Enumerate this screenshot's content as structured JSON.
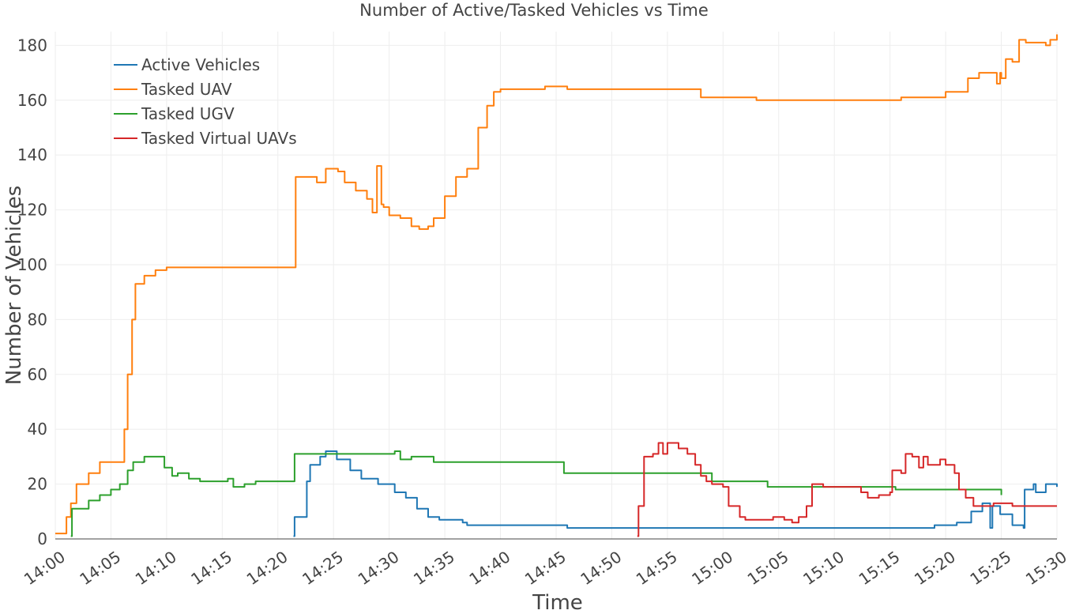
{
  "chart_data": {
    "type": "line",
    "title": "Number of Active/Tasked Vehicles vs Time",
    "xlabel": "Time",
    "ylabel": "Number of Vehicles",
    "xlim_minutes": [
      0,
      90
    ],
    "ylim": [
      0,
      185
    ],
    "grid": true,
    "legend_position": "top-left",
    "x_tick_values": [
      0,
      5,
      10,
      15,
      20,
      25,
      30,
      35,
      40,
      45,
      50,
      55,
      60,
      65,
      70,
      75,
      80,
      85,
      90
    ],
    "x_ticks": [
      "14:00",
      "14:05",
      "14:10",
      "14:15",
      "14:20",
      "14:25",
      "14:30",
      "14:35",
      "14:40",
      "14:45",
      "14:50",
      "14:55",
      "15:00",
      "15:05",
      "15:10",
      "15:15",
      "15:20",
      "15:25",
      "15:30"
    ],
    "y_ticks": [
      0,
      20,
      40,
      60,
      80,
      100,
      120,
      140,
      160,
      180
    ],
    "series": [
      {
        "name": "Active Vehicles",
        "color": "#1f77b4",
        "points": [
          [
            21.4,
            1
          ],
          [
            21.5,
            8
          ],
          [
            22.3,
            8
          ],
          [
            22.6,
            21
          ],
          [
            22.9,
            27
          ],
          [
            23.8,
            30
          ],
          [
            24.3,
            32
          ],
          [
            25,
            32
          ],
          [
            25.3,
            29
          ],
          [
            26.5,
            25
          ],
          [
            27.5,
            22
          ],
          [
            29,
            20
          ],
          [
            30.5,
            17
          ],
          [
            31.5,
            15
          ],
          [
            32.5,
            11
          ],
          [
            33.5,
            8
          ],
          [
            34.5,
            7
          ],
          [
            36.6,
            6
          ],
          [
            37,
            5
          ],
          [
            45,
            5
          ],
          [
            46,
            4
          ],
          [
            84,
            4
          ],
          [
            86,
            5
          ],
          [
            87,
            4
          ],
          [
            87.1,
            18
          ],
          [
            87.9,
            20
          ],
          [
            88.1,
            17
          ],
          [
            89,
            20
          ],
          [
            90,
            19
          ]
        ],
        "extra_points": [
          [
            75,
            4
          ],
          [
            79,
            5
          ],
          [
            81,
            6
          ],
          [
            82.3,
            10
          ],
          [
            83.3,
            13
          ],
          [
            84.2,
            12
          ],
          [
            84.9,
            9
          ]
        ]
      },
      {
        "name": "Tasked UAV",
        "color": "#ff7f0e",
        "points": [
          [
            0,
            2
          ],
          [
            0.7,
            2
          ],
          [
            1,
            8
          ],
          [
            1.4,
            13
          ],
          [
            1.9,
            20
          ],
          [
            3,
            24
          ],
          [
            4,
            28
          ],
          [
            6,
            28
          ],
          [
            6.2,
            40
          ],
          [
            6.5,
            60
          ],
          [
            6.9,
            80
          ],
          [
            7.2,
            93
          ],
          [
            8,
            96
          ],
          [
            9,
            98
          ],
          [
            10,
            99
          ],
          [
            21.5,
            99
          ],
          [
            21.6,
            132
          ],
          [
            23,
            132
          ],
          [
            23.5,
            130
          ],
          [
            24.3,
            135
          ],
          [
            25.4,
            134
          ],
          [
            26,
            130
          ],
          [
            27,
            127
          ],
          [
            28,
            124
          ],
          [
            29.5,
            121
          ],
          [
            30,
            118
          ],
          [
            31,
            117
          ],
          [
            32,
            114
          ],
          [
            32.7,
            113
          ],
          [
            33.5,
            114
          ],
          [
            34,
            117
          ],
          [
            35,
            125
          ],
          [
            36,
            132
          ],
          [
            37,
            135
          ],
          [
            38,
            150
          ],
          [
            38.8,
            158
          ],
          [
            39.4,
            163
          ],
          [
            40,
            164
          ],
          [
            44,
            164
          ],
          [
            44,
            165
          ],
          [
            46,
            164
          ],
          [
            57.5,
            164
          ],
          [
            58,
            161
          ],
          [
            63,
            161
          ],
          [
            63,
            160
          ],
          [
            76,
            160
          ],
          [
            76,
            161
          ],
          [
            80,
            161
          ],
          [
            80,
            163
          ],
          [
            82,
            163
          ],
          [
            82,
            168
          ],
          [
            83,
            170
          ],
          [
            84,
            170
          ],
          [
            85,
            168
          ],
          [
            85.4,
            175
          ],
          [
            86,
            174
          ],
          [
            86.6,
            182
          ],
          [
            87.2,
            181
          ],
          [
            88,
            181
          ],
          [
            89,
            180
          ],
          [
            89.4,
            182
          ],
          [
            90,
            184
          ]
        ],
        "extra_points": [
          [
            28.5,
            119
          ],
          [
            28.9,
            136
          ],
          [
            29.3,
            122
          ],
          [
            84.6,
            166
          ],
          [
            84.9,
            170
          ]
        ]
      },
      {
        "name": "Tasked UGV",
        "color": "#2ca02c",
        "points": [
          [
            1.4,
            1
          ],
          [
            1.5,
            11
          ],
          [
            2.5,
            11
          ],
          [
            3,
            14
          ],
          [
            4,
            16
          ],
          [
            5,
            18
          ],
          [
            5.8,
            20
          ],
          [
            6.5,
            25
          ],
          [
            7,
            28
          ],
          [
            8,
            30
          ],
          [
            9,
            30
          ],
          [
            9.8,
            26
          ],
          [
            10.5,
            23
          ],
          [
            11,
            24
          ],
          [
            12,
            22
          ],
          [
            13,
            21
          ],
          [
            15.5,
            22
          ],
          [
            16,
            19
          ],
          [
            17,
            20
          ],
          [
            18,
            21
          ],
          [
            21.4,
            21
          ],
          [
            21.5,
            31
          ],
          [
            25,
            31
          ],
          [
            26,
            31
          ],
          [
            31,
            31
          ],
          [
            32,
            30
          ],
          [
            34,
            28
          ],
          [
            44.8,
            28
          ],
          [
            45.7,
            24
          ],
          [
            57,
            24
          ],
          [
            59,
            21
          ],
          [
            63,
            21
          ],
          [
            64,
            19
          ],
          [
            75,
            19
          ],
          [
            75.5,
            18
          ],
          [
            84.7,
            18
          ],
          [
            85,
            16
          ]
        ],
        "extra_points": [
          [
            30.5,
            32
          ],
          [
            31,
            29
          ]
        ]
      },
      {
        "name": "Tasked Virtual UAVs",
        "color": "#d62728",
        "points": [
          [
            52.3,
            1
          ],
          [
            52.4,
            12
          ],
          [
            52.9,
            30
          ],
          [
            53.7,
            31
          ],
          [
            54.2,
            35
          ],
          [
            54.6,
            31
          ],
          [
            55,
            35
          ],
          [
            56,
            33
          ],
          [
            56.8,
            31
          ],
          [
            57.5,
            27
          ],
          [
            58,
            23
          ],
          [
            58.5,
            21
          ],
          [
            59,
            20
          ],
          [
            60,
            19
          ],
          [
            60.5,
            12
          ],
          [
            61.5,
            8
          ],
          [
            62,
            7
          ],
          [
            64,
            7
          ],
          [
            64.5,
            8
          ],
          [
            65.5,
            7
          ],
          [
            66.2,
            6
          ],
          [
            66.8,
            8
          ],
          [
            67.5,
            12
          ],
          [
            68,
            20
          ],
          [
            69,
            19
          ],
          [
            72,
            19
          ],
          [
            72.4,
            17
          ],
          [
            73,
            15
          ],
          [
            74,
            16
          ],
          [
            75,
            17
          ],
          [
            75.2,
            25
          ],
          [
            76,
            24
          ],
          [
            76.4,
            31
          ],
          [
            77,
            30
          ],
          [
            78,
            30
          ],
          [
            78.4,
            27
          ],
          [
            79,
            27
          ],
          [
            79.5,
            29
          ],
          [
            80,
            27
          ],
          [
            80.8,
            24
          ],
          [
            81.2,
            18
          ],
          [
            81.8,
            15
          ],
          [
            82.5,
            12
          ],
          [
            86,
            12
          ],
          [
            90,
            12
          ]
        ],
        "extra_points": [
          [
            77.6,
            26
          ],
          [
            84.3,
            13
          ]
        ]
      }
    ]
  }
}
